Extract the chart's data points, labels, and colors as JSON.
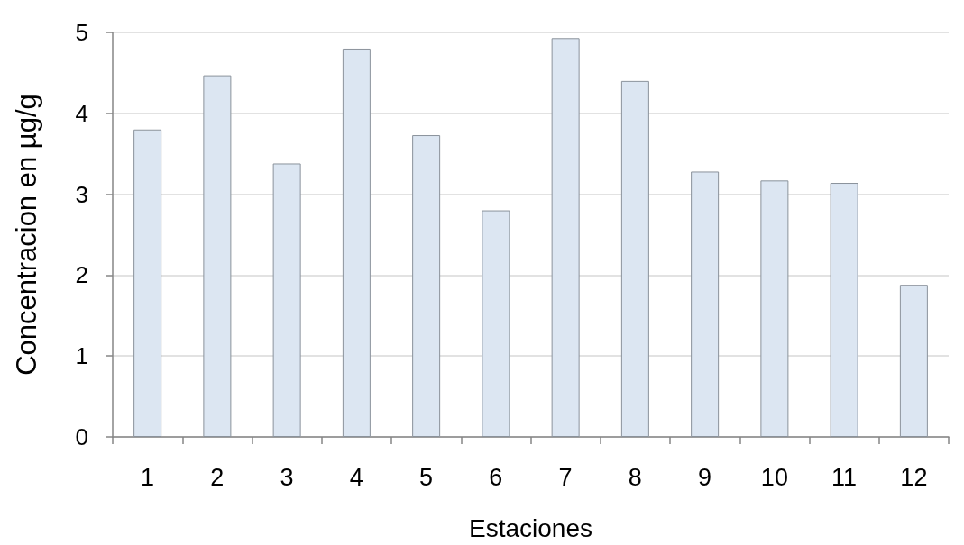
{
  "chart_data": {
    "type": "bar",
    "xlabel": "Estaciones",
    "ylabel": "Concentracion en µg/g",
    "categories": [
      "1",
      "2",
      "3",
      "4",
      "5",
      "6",
      "7",
      "8",
      "9",
      "10",
      "11",
      "12"
    ],
    "values": [
      3.8,
      4.47,
      3.38,
      4.8,
      3.73,
      2.8,
      4.93,
      4.4,
      3.28,
      3.17,
      3.14,
      1.88
    ],
    "color": "#dce6f2",
    "ylim": [
      0,
      5
    ],
    "yticks": [
      0,
      1,
      2,
      3,
      4,
      5
    ],
    "grid": "y"
  }
}
